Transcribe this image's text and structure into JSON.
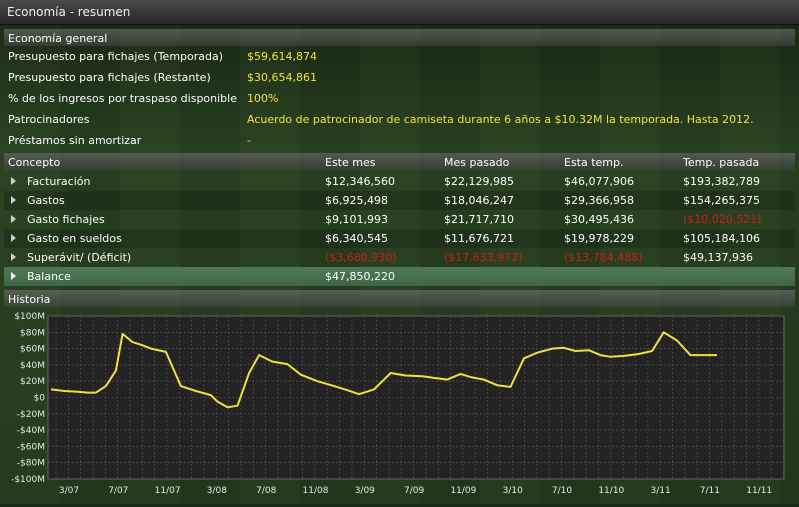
{
  "window": {
    "title": "Economía - resumen"
  },
  "general": {
    "header": "Economía general",
    "rows": [
      {
        "label": "Presupuesto para fichajes (Temporada)",
        "value": "$59,614,874"
      },
      {
        "label": "Presupuesto para fichajes (Restante)",
        "value": "$30,654,861"
      },
      {
        "label": "% de los ingresos por traspaso disponible",
        "value": "100%"
      },
      {
        "label": "Patrocinadores",
        "value": "Acuerdo de patrocinador de camiseta durante 6 años a $10.32M la temporada. Hasta 2012."
      },
      {
        "label": "Préstamos sin amortizar",
        "value": "-"
      }
    ]
  },
  "table": {
    "headers": [
      "Concepto",
      "Este mes",
      "Mes pasado",
      "Esta temp.",
      "Temp. pasada"
    ],
    "rows": [
      {
        "name": "Facturación",
        "values": [
          "$12,346,560",
          "$22,129,985",
          "$46,077,906",
          "$193,382,789"
        ]
      },
      {
        "name": "Gastos",
        "values": [
          "$6,925,498",
          "$18,046,247",
          "$29,366,958",
          "$154,265,375"
        ]
      },
      {
        "name": "Gasto fichajes",
        "values": [
          "$9,101,993",
          "$21,717,710",
          "$30,495,436",
          "($10,020,521)"
        ]
      },
      {
        "name": "Gasto en sueldos",
        "values": [
          "$6,340,545",
          "$11,676,721",
          "$19,978,229",
          "$105,184,106"
        ]
      },
      {
        "name": "Superávit/ (Déficit)",
        "values": [
          "($3,680,930)",
          "($17,633,972)",
          "($13,784,488)",
          "$49,137,936"
        ]
      },
      {
        "name": "Balance",
        "values": [
          "$47,850,220",
          "",
          "",
          ""
        ]
      }
    ]
  },
  "history": {
    "header": "Historia",
    "colors": {
      "line": "#f0e040",
      "grid": "#5a5a5a",
      "plot_bg": "#232323"
    }
  },
  "chart_data": {
    "type": "line",
    "yticks": [
      "$100M",
      "$80M",
      "$60M",
      "$40M",
      "$20M",
      "$0",
      "-$20M",
      "-$40M",
      "-$60M",
      "-$80M",
      "-$100M"
    ],
    "xticks": [
      "3/07",
      "7/07",
      "11/07",
      "3/08",
      "7/08",
      "11/08",
      "3/09",
      "7/09",
      "11/09",
      "3/10",
      "7/10",
      "11/10",
      "3/11",
      "7/11",
      "11/11"
    ],
    "ylim": [
      -100,
      100
    ],
    "grid": true,
    "series": [
      {
        "x": [
          0,
          0.8,
          1.6,
          2.2,
          2.7,
          3.3,
          3.9,
          4.3,
          4.9,
          5.5,
          6.0,
          6.9,
          7.8,
          8.7,
          9.6,
          10.0,
          10.6,
          11.2,
          11.9,
          12.5,
          13.3,
          14.2,
          15.0,
          16.0,
          17.0,
          17.8,
          18.5,
          19.4,
          20.4,
          21.3,
          22.3,
          23.0,
          23.8,
          24.6,
          25.2,
          26.0,
          26.8,
          27.6,
          28.4,
          29.2,
          30.1,
          30.8,
          31.5,
          32.3,
          33.0,
          33.6,
          34.4,
          35.2,
          36.1,
          36.8,
          37.6,
          38.4,
          39.2,
          40.0
        ],
        "values": [
          10,
          8,
          7,
          6,
          6,
          14,
          33,
          78,
          68,
          64,
          60,
          56,
          14,
          8,
          3,
          -5,
          -12,
          -10,
          30,
          52,
          44,
          41,
          28,
          20,
          14,
          9,
          4,
          10,
          30,
          27,
          26,
          24,
          22,
          29,
          25,
          22,
          15,
          13,
          48,
          55,
          60,
          61,
          57,
          58,
          52,
          50,
          51,
          53,
          57,
          80,
          70,
          52,
          52,
          52
        ]
      }
    ]
  }
}
